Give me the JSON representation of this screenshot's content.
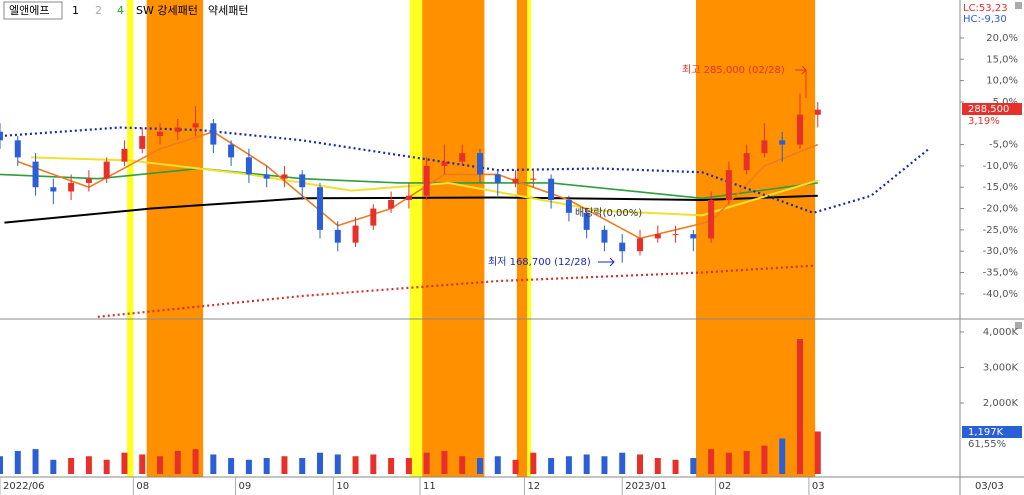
{
  "header": {
    "stock": "엘앤에프",
    "tabs": [
      "1",
      "2",
      "4"
    ],
    "strong": "SW 강세패턴",
    "weak": "약세패턴",
    "lc": "LC:53,23",
    "hc": "HC:-9,30"
  },
  "chart_data": [
    {
      "type": "candlestick",
      "up_color": "#e8302a",
      "down_color": "#2a5fd8",
      "ylim": [
        -45.9,
        28.9
      ],
      "xlim": [
        0,
        216
      ],
      "yticks": [
        {
          "value": 20,
          "label": "20,0%"
        },
        {
          "value": 15,
          "label": "15,0%"
        },
        {
          "value": 10,
          "label": "10,0%"
        },
        {
          "value": 5,
          "label": "5,0%"
        },
        {
          "value": -5,
          "label": "-5,0%"
        },
        {
          "value": -10,
          "label": "-10,0%"
        },
        {
          "value": -15,
          "label": "-15,0%"
        },
        {
          "value": -20,
          "label": "-20,0%"
        },
        {
          "value": -25,
          "label": "-25,0%"
        },
        {
          "value": -30,
          "label": "-30,0%"
        },
        {
          "value": -35,
          "label": "-35,0%"
        },
        {
          "value": -40,
          "label": "-40,0%"
        }
      ],
      "xticks": [
        {
          "value": 0,
          "label": "2022/06"
        },
        {
          "value": 30,
          "label": "08"
        },
        {
          "value": 53,
          "label": "09"
        },
        {
          "value": 75,
          "label": "10"
        },
        {
          "value": 94.5,
          "label": "11"
        },
        {
          "value": 118,
          "label": "12"
        },
        {
          "value": 140,
          "label": "2023/01"
        },
        {
          "value": 161,
          "label": "02"
        },
        {
          "value": 182,
          "label": "03"
        }
      ],
      "current_date": "03/03",
      "strong_bands": [
        [
          33,
          45.7
        ],
        [
          95,
          109
        ],
        [
          116.3,
          118.6
        ],
        [
          156.6,
          183.4
        ]
      ],
      "strong_color": "#ff9000",
      "yellow_bands": [
        [
          28.6,
          30
        ],
        [
          92.2,
          95
        ],
        [
          118.6,
          119.5
        ]
      ],
      "yellow_color": "#ffff20",
      "x": [
        0,
        4,
        8,
        12,
        16,
        20,
        24,
        28,
        32,
        36,
        40,
        44,
        48,
        52,
        56,
        60,
        64,
        68,
        72,
        76,
        80,
        84,
        88,
        92,
        96,
        100,
        104,
        108,
        112,
        116,
        120,
        124,
        128,
        132,
        136,
        140,
        144,
        148,
        152,
        156,
        160,
        164,
        168,
        172,
        176,
        180,
        184
      ],
      "candles": [
        [
          -2,
          0,
          -6,
          -4
        ],
        [
          -4,
          -3,
          -10,
          -8
        ],
        [
          -9,
          -7,
          -17,
          -15
        ],
        [
          -15,
          -13,
          -19,
          -16
        ],
        [
          -16,
          -12,
          -18,
          -14
        ],
        [
          -14,
          -11,
          -16,
          -13
        ],
        [
          -13,
          -8,
          -14,
          -9
        ],
        [
          -9,
          -4,
          -10,
          -6
        ],
        [
          -6,
          -1,
          -7,
          -3
        ],
        [
          -3,
          0,
          -5,
          -2
        ],
        [
          -2,
          1,
          -4,
          -1
        ],
        [
          -1,
          4,
          -3,
          0
        ],
        [
          0,
          1,
          -7,
          -5
        ],
        [
          -5,
          -4,
          -10,
          -8
        ],
        [
          -8,
          -6,
          -14,
          -12
        ],
        [
          -12,
          -10,
          -15,
          -13
        ],
        [
          -13,
          -10,
          -15,
          -12
        ],
        [
          -12,
          -11,
          -18,
          -15
        ],
        [
          -15,
          -14,
          -27,
          -25
        ],
        [
          -25,
          -23,
          -30,
          -28
        ],
        [
          -28,
          -22,
          -29,
          -24
        ],
        [
          -24,
          -19,
          -25,
          -20
        ],
        [
          -20,
          -16,
          -21,
          -18
        ],
        [
          -18,
          -14,
          -20,
          -17
        ],
        [
          -17,
          -8,
          -18,
          -10
        ],
        [
          -10,
          -5,
          -12,
          -9
        ],
        [
          -9,
          -5,
          -10,
          -7
        ],
        [
          -7,
          -6,
          -14,
          -12
        ],
        [
          -12,
          -11,
          -17,
          -14
        ],
        [
          -14,
          -11,
          -15,
          -13
        ],
        [
          -13,
          -11,
          -15,
          -13
        ],
        [
          -13,
          -12,
          -20,
          -18
        ],
        [
          -18,
          -17,
          -23,
          -21
        ],
        [
          -21,
          -20,
          -27,
          -25
        ],
        [
          -25,
          -24,
          -30,
          -28
        ],
        [
          -28,
          -26,
          -32.7,
          -30
        ],
        [
          -30,
          -25,
          -31,
          -27
        ],
        [
          -27,
          -24,
          -28,
          -26
        ],
        [
          -26,
          -24,
          -28,
          -26
        ],
        [
          -26,
          -25,
          -30,
          -27
        ],
        [
          -27,
          -16,
          -28,
          -18
        ],
        [
          -18,
          -9,
          -19,
          -11
        ],
        [
          -11,
          -5,
          -12,
          -7
        ],
        [
          -7,
          0,
          -8,
          -4
        ],
        [
          -4,
          -2,
          -9,
          -5
        ],
        [
          -5,
          7,
          -6,
          2
        ],
        [
          2,
          5,
          -1,
          3.19
        ]
      ],
      "lines": [
        {
          "color": "#000000",
          "width": 2,
          "dotted": false,
          "x": [
            1,
            34,
            68,
            112,
            158,
            184
          ],
          "values": [
            -23.3,
            -20,
            -17.6,
            -17.4,
            -18,
            -17
          ]
        },
        {
          "color": "#2e9e3e",
          "width": 1.6,
          "dotted": false,
          "x": [
            0,
            22,
            45,
            68,
            90,
            124,
            158,
            184
          ],
          "values": [
            -12,
            -13,
            -10.6,
            -13,
            -14,
            -14,
            -17.6,
            -14
          ]
        },
        {
          "color": "#f0e030",
          "width": 2,
          "dotted": false,
          "x": [
            7,
            29,
            56,
            79,
            101,
            135,
            158,
            184
          ],
          "values": [
            -8,
            -8.7,
            -12,
            -15.8,
            -14,
            -20.5,
            -21.6,
            -13.4
          ]
        },
        {
          "color": "#f07a20",
          "width": 1.6,
          "dotted": false,
          "x": [
            4,
            20,
            36,
            48,
            60,
            76,
            88,
            100,
            112,
            128,
            144,
            160,
            172,
            184
          ],
          "values": [
            -9,
            -15,
            -6,
            -2,
            -10,
            -24,
            -20,
            -12,
            -12,
            -18,
            -27,
            -23,
            -10,
            -5
          ]
        },
        {
          "color": "#1a2aa8",
          "width": 2.2,
          "dotted": true,
          "x": [
            0,
            27,
            45,
            68,
            90,
            112,
            135,
            158,
            183,
            196,
            209
          ],
          "values": [
            -3,
            -1,
            -1.6,
            -4,
            -7.5,
            -11,
            -10.6,
            -11.5,
            -21,
            -17,
            -6
          ]
        },
        {
          "color": "#d83030",
          "width": 2.2,
          "dotted": true,
          "x": [
            22,
            68,
            112,
            158,
            183
          ],
          "values": [
            -45.4,
            -40.5,
            -37,
            -35,
            -33.4
          ]
        }
      ],
      "annotations": [
        {
          "text": "최고 285,000 (02/28)",
          "color": "#e8302a"
        },
        {
          "text": "최저 168,700 (12/28)",
          "color": "#1a2aa8"
        },
        {
          "text": "배당락(0,00%)",
          "color": "#333333"
        }
      ],
      "price_box": "288,500",
      "change": "3,19%"
    },
    {
      "type": "volume",
      "ylim": [
        0,
        4280
      ],
      "yticks": [
        {
          "value": 4000,
          "label": "4,000K"
        },
        {
          "value": 3000,
          "label": "3,000K"
        },
        {
          "value": 2000,
          "label": "2,000K"
        }
      ],
      "values": [
        500,
        650,
        700,
        400,
        450,
        500,
        400,
        600,
        550,
        500,
        650,
        700,
        550,
        450,
        400,
        450,
        500,
        450,
        600,
        550,
        500,
        550,
        450,
        450,
        600,
        650,
        500,
        450,
        500,
        400,
        600,
        450,
        500,
        550,
        500,
        600,
        550,
        450,
        400,
        450,
        700,
        600,
        650,
        800,
        1000,
        3800,
        1197
      ],
      "value_box": "1,197K",
      "ratio": "61,55%"
    }
  ]
}
